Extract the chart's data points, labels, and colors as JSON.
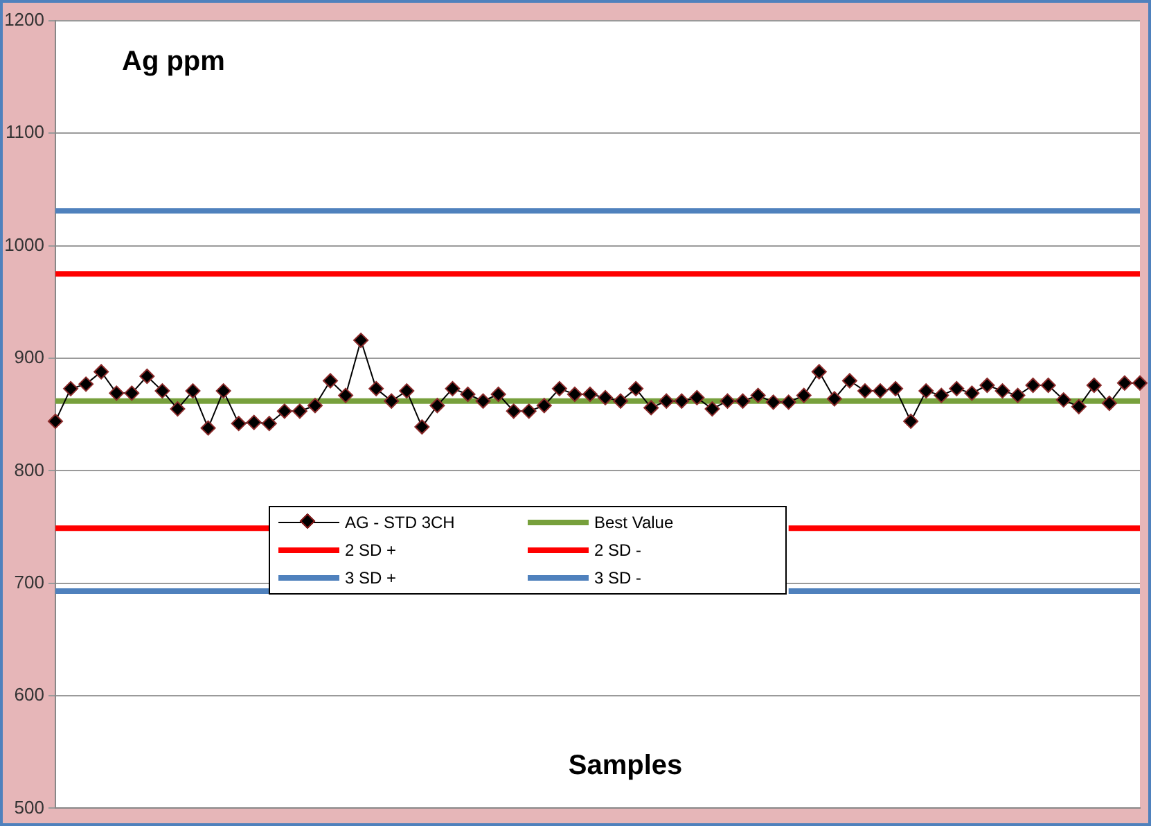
{
  "chart_data": {
    "type": "line",
    "title": "Ag ppm",
    "xlabel": "Samples",
    "categories": [
      null,
      null,
      null,
      null,
      null,
      null,
      null,
      null,
      null,
      null,
      null,
      null,
      null,
      null,
      null,
      null,
      null,
      null,
      null,
      null,
      null,
      null,
      null,
      null,
      null,
      null,
      null,
      null,
      null,
      null,
      null,
      null,
      null,
      null,
      null,
      null,
      null,
      null,
      null,
      null,
      null,
      null,
      null,
      null,
      null,
      null,
      null,
      null,
      null,
      null,
      null,
      null,
      null,
      null,
      null,
      null,
      null,
      null,
      null,
      null,
      null,
      null,
      null,
      null,
      null,
      null,
      null,
      null,
      null,
      null,
      null,
      null
    ],
    "series": [
      {
        "name": "AG - STD 3CH",
        "color": "#000000",
        "marker": "diamond",
        "values": [
          844,
          873,
          877,
          888,
          869,
          869,
          884,
          871,
          855,
          871,
          838,
          871,
          842,
          843,
          842,
          853,
          853,
          858,
          880,
          867,
          916,
          873,
          862,
          871,
          839,
          858,
          873,
          868,
          862,
          868,
          853,
          853,
          858,
          873,
          868,
          868,
          865,
          862,
          873,
          856,
          862,
          862,
          865,
          855,
          862,
          862,
          867,
          861,
          861,
          867,
          888,
          864,
          880,
          871,
          871,
          873,
          844,
          871,
          867,
          873,
          869,
          876,
          871,
          867,
          876,
          876,
          863,
          857,
          876,
          860,
          878,
          878
        ]
      },
      {
        "name": "Best Value",
        "color": "#77a03c",
        "marker": "none",
        "values": [
          862,
          862,
          862,
          862,
          862,
          862,
          862,
          862,
          862,
          862,
          862,
          862,
          862,
          862,
          862,
          862,
          862,
          862,
          862,
          862,
          862,
          862,
          862,
          862,
          862,
          862,
          862,
          862,
          862,
          862,
          862,
          862,
          862,
          862,
          862,
          862,
          862,
          862,
          862,
          862,
          862,
          862,
          862,
          862,
          862,
          862,
          862,
          862,
          862,
          862,
          862,
          862,
          862,
          862,
          862,
          862,
          862,
          862,
          862,
          862,
          862,
          862,
          862,
          862,
          862,
          862,
          862,
          862,
          862,
          862,
          862,
          862
        ]
      },
      {
        "name": "2 SD +",
        "color": "#ff0000",
        "marker": "none",
        "values": [
          975,
          975,
          975,
          975,
          975,
          975,
          975,
          975,
          975,
          975,
          975,
          975,
          975,
          975,
          975,
          975,
          975,
          975,
          975,
          975,
          975,
          975,
          975,
          975,
          975,
          975,
          975,
          975,
          975,
          975,
          975,
          975,
          975,
          975,
          975,
          975,
          975,
          975,
          975,
          975,
          975,
          975,
          975,
          975,
          975,
          975,
          975,
          975,
          975,
          975,
          975,
          975,
          975,
          975,
          975,
          975,
          975,
          975,
          975,
          975,
          975,
          975,
          975,
          975,
          975,
          975,
          975,
          975,
          975,
          975,
          975,
          975
        ]
      },
      {
        "name": "2 SD -",
        "color": "#ff0000",
        "marker": "none",
        "values": [
          749,
          749,
          749,
          749,
          749,
          749,
          749,
          749,
          749,
          749,
          749,
          749,
          749,
          749,
          749,
          null,
          null,
          null,
          null,
          null,
          null,
          null,
          null,
          null,
          null,
          null,
          null,
          null,
          null,
          null,
          null,
          null,
          null,
          null,
          null,
          null,
          null,
          null,
          null,
          null,
          null,
          null,
          null,
          null,
          null,
          null,
          null,
          null,
          749,
          749,
          749,
          749,
          749,
          749,
          749,
          749,
          749,
          749,
          749,
          749,
          749,
          749,
          749,
          749,
          749,
          749,
          749,
          749,
          749,
          749,
          749,
          749
        ]
      },
      {
        "name": "3 SD +",
        "color": "#4f81bd",
        "marker": "none",
        "values": [
          1031,
          1031,
          1031,
          1031,
          1031,
          1031,
          1031,
          1031,
          1031,
          1031,
          1031,
          1031,
          1031,
          1031,
          1031,
          1031,
          1031,
          1031,
          1031,
          1031,
          1031,
          1031,
          1031,
          1031,
          1031,
          1031,
          1031,
          1031,
          1031,
          1031,
          1031,
          1031,
          1031,
          1031,
          1031,
          1031,
          1031,
          1031,
          1031,
          1031,
          1031,
          1031,
          1031,
          1031,
          1031,
          1031,
          1031,
          1031,
          1031,
          1031,
          1031,
          1031,
          1031,
          1031,
          1031,
          1031,
          1031,
          1031,
          1031,
          1031,
          1031,
          1031,
          1031,
          1031,
          1031,
          1031,
          1031,
          1031,
          1031,
          1031,
          1031,
          1031
        ]
      },
      {
        "name": "3 SD -",
        "color": "#4f81bd",
        "marker": "none",
        "values": [
          693,
          693,
          693,
          693,
          693,
          693,
          693,
          693,
          693,
          693,
          693,
          693,
          693,
          693,
          693,
          null,
          null,
          null,
          null,
          null,
          null,
          null,
          null,
          null,
          null,
          null,
          null,
          null,
          null,
          null,
          null,
          null,
          null,
          null,
          null,
          null,
          null,
          null,
          null,
          null,
          null,
          null,
          null,
          null,
          null,
          null,
          null,
          null,
          693,
          693,
          693,
          693,
          693,
          693,
          693,
          693,
          693,
          693,
          693,
          693,
          693,
          693,
          693,
          693,
          693,
          693,
          693,
          693,
          693,
          693,
          693,
          693
        ]
      }
    ],
    "ylim": [
      500,
      1200
    ],
    "yticks": [
      500,
      600,
      700,
      800,
      900,
      1000,
      1100,
      1200
    ],
    "grid": "y",
    "legend": "bottom left",
    "tick_labels": "y"
  }
}
